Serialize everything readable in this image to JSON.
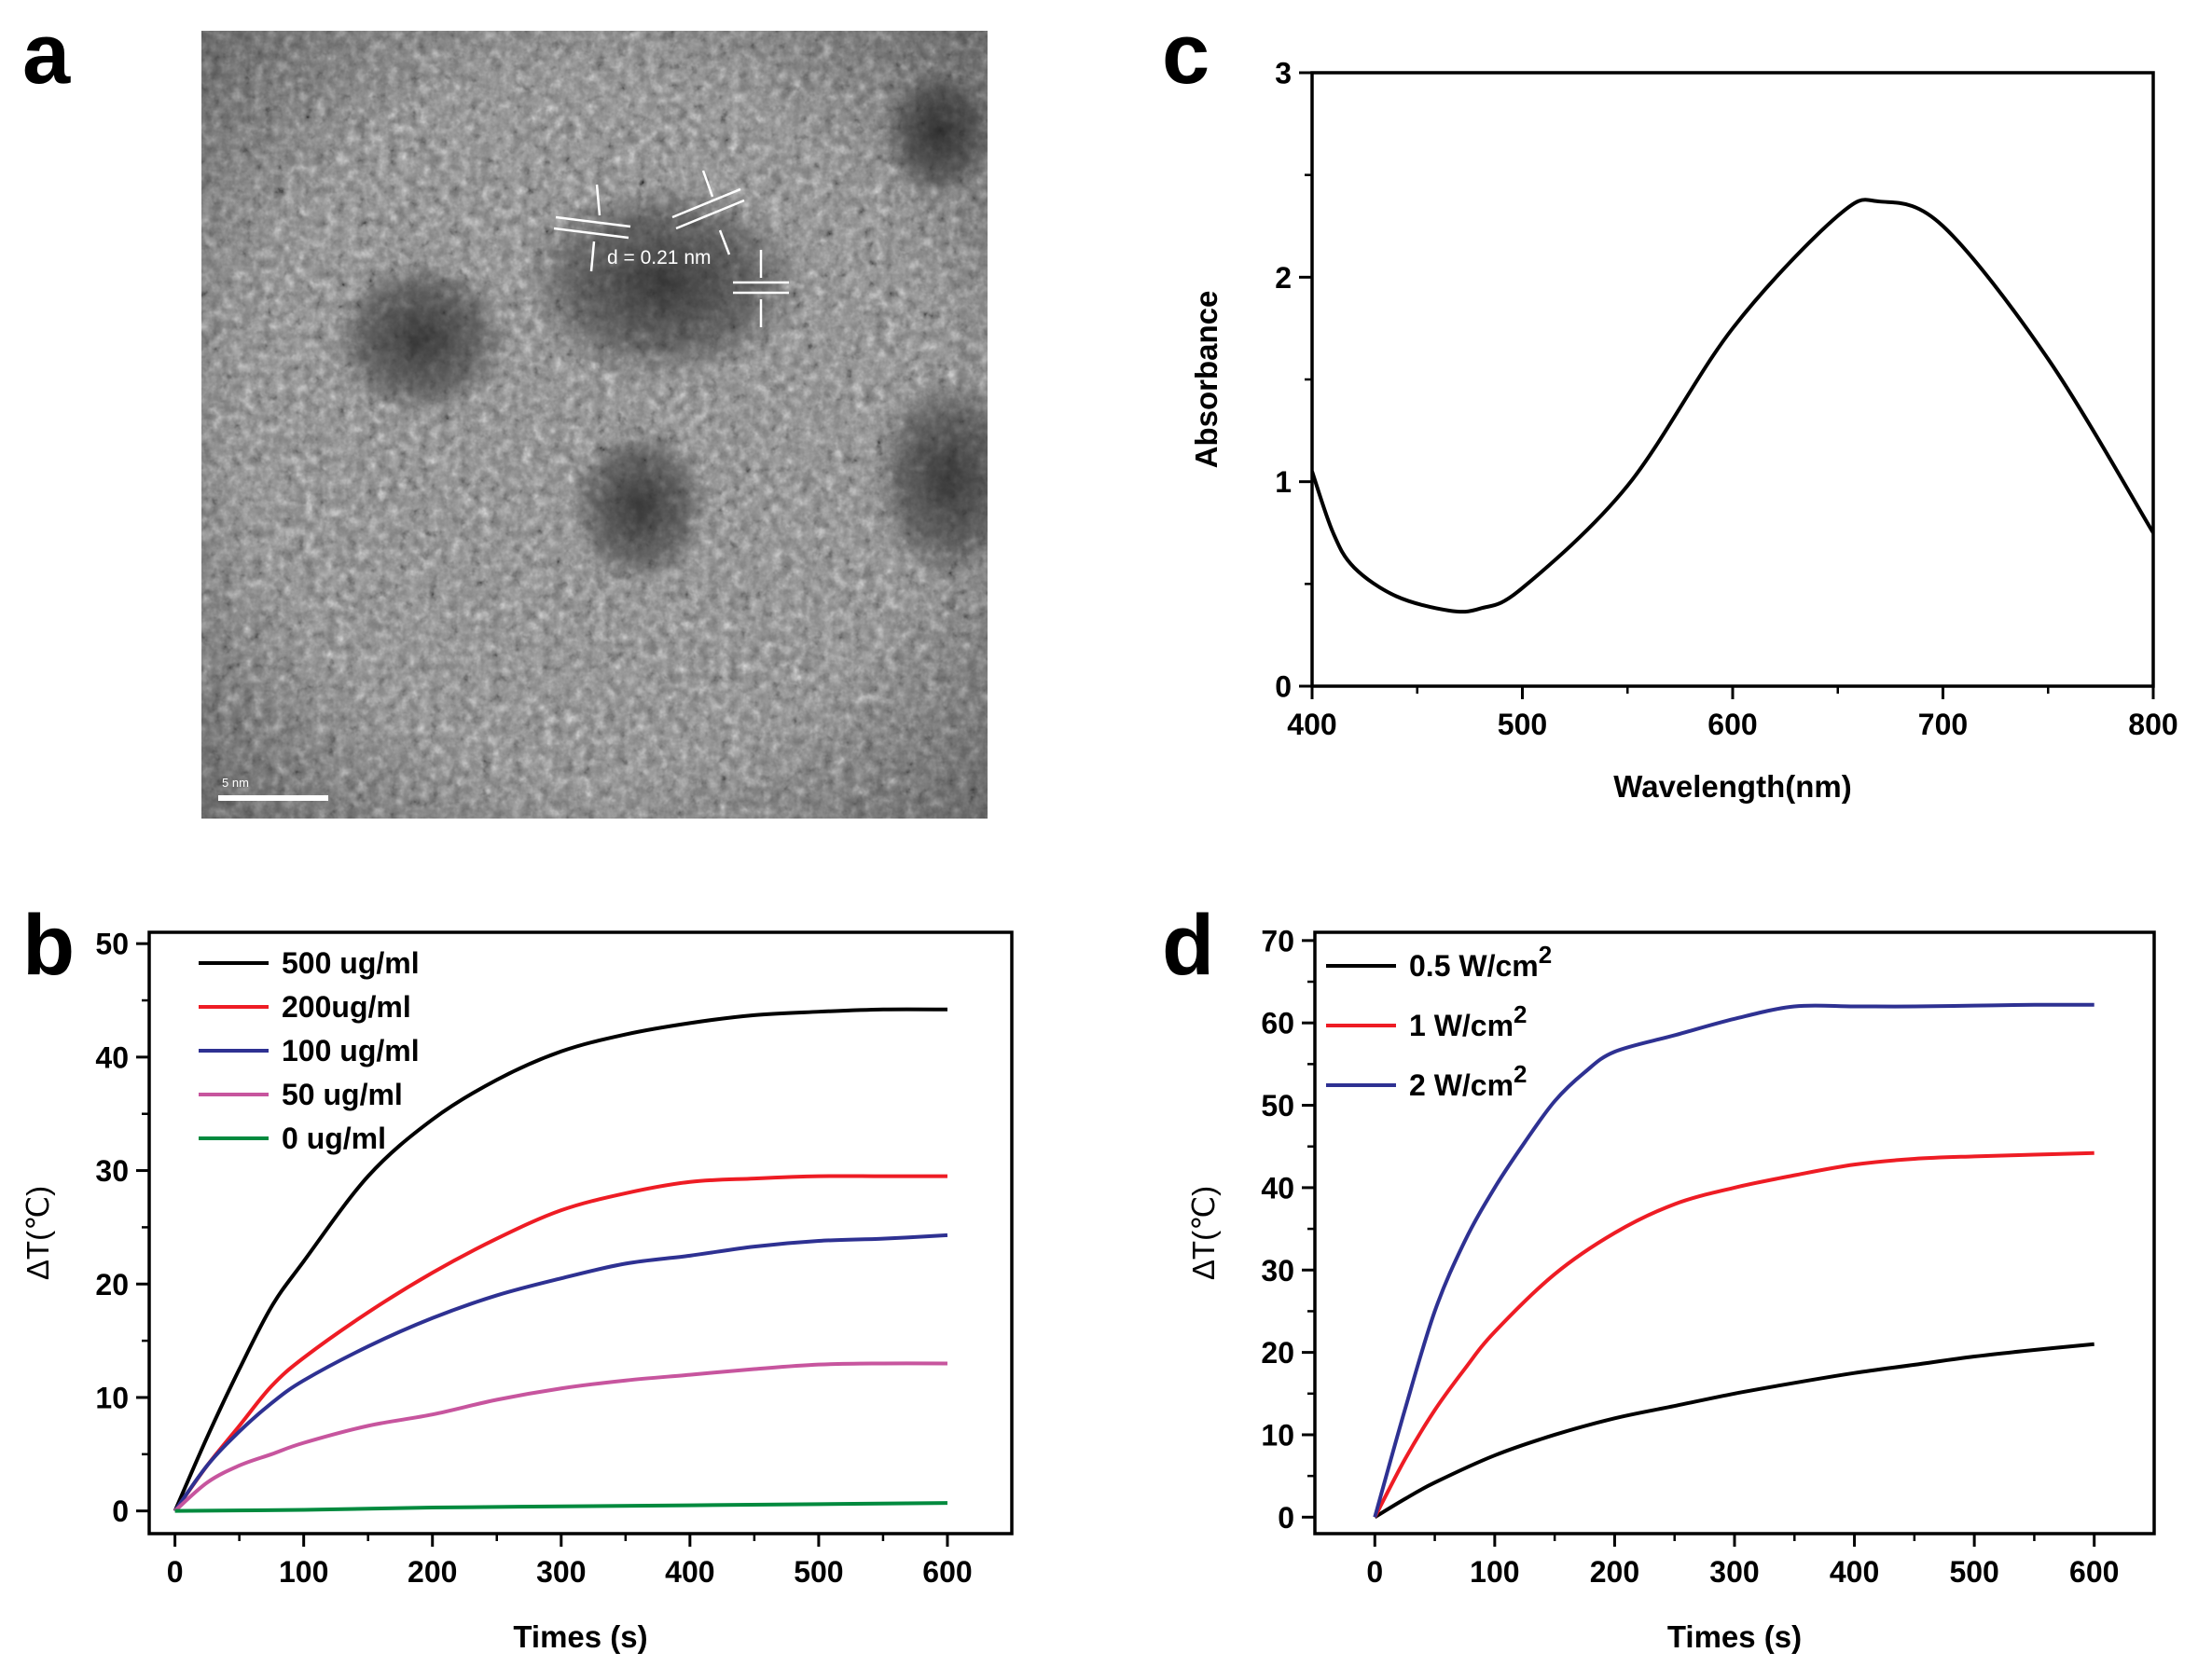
{
  "panels": {
    "a": {
      "letter": "a",
      "annotation": "d = 0.21 nm",
      "scale_bar_label": "5 nm"
    },
    "b": {
      "letter": "b"
    },
    "c": {
      "letter": "c"
    },
    "d": {
      "letter": "d"
    }
  },
  "chart_data": [
    {
      "id": "c",
      "type": "line",
      "title": "",
      "xlabel": "Wavelength(nm)",
      "ylabel": "Absorbance",
      "xlim": [
        400,
        800
      ],
      "ylim": [
        0,
        3
      ],
      "xticks": [
        "400",
        "500",
        "600",
        "700",
        "800"
      ],
      "yticks": [
        "0",
        "1",
        "2",
        "3"
      ],
      "grid": false,
      "series": [
        {
          "color": "#000000",
          "x": [
            400,
            410,
            420,
            440,
            465,
            480,
            500,
            550,
            600,
            650,
            670,
            700,
            750,
            800
          ],
          "y": [
            1.05,
            0.75,
            0.58,
            0.44,
            0.37,
            0.38,
            0.48,
            0.98,
            1.75,
            2.3,
            2.37,
            2.25,
            1.6,
            0.75
          ]
        }
      ]
    },
    {
      "id": "b",
      "type": "line",
      "title": "",
      "xlabel": "Times (s)",
      "ylabel": "ΔT(℃)",
      "xlim": [
        -20,
        650
      ],
      "ylim": [
        -2,
        51
      ],
      "xticks": [
        "0",
        "100",
        "200",
        "300",
        "400",
        "500",
        "600"
      ],
      "yticks": [
        "0",
        "10",
        "20",
        "30",
        "40",
        "50"
      ],
      "legend_position": "top-left",
      "grid": false,
      "series": [
        {
          "name": "500 ug/ml",
          "color": "#000000",
          "x": [
            0,
            25,
            50,
            75,
            100,
            150,
            200,
            250,
            300,
            350,
            400,
            450,
            500,
            550,
            600
          ],
          "y": [
            0,
            6.5,
            12.5,
            18,
            22,
            29.5,
            34.5,
            38,
            40.5,
            42,
            43,
            43.7,
            44,
            44.2,
            44.2
          ]
        },
        {
          "name": "200ug/ml",
          "color": "#ee1c24",
          "x": [
            0,
            25,
            50,
            75,
            100,
            150,
            200,
            250,
            300,
            350,
            400,
            450,
            500,
            550,
            600
          ],
          "y": [
            0,
            4,
            7.5,
            11,
            13.5,
            17.5,
            21,
            24,
            26.5,
            28,
            29,
            29.3,
            29.5,
            29.5,
            29.5
          ]
        },
        {
          "name": "100 ug/ml",
          "color": "#2e3192",
          "x": [
            0,
            25,
            50,
            75,
            100,
            150,
            200,
            250,
            300,
            350,
            400,
            450,
            500,
            550,
            600
          ],
          "y": [
            0,
            4,
            7,
            9.5,
            11.5,
            14.5,
            17,
            19,
            20.5,
            21.8,
            22.5,
            23.3,
            23.8,
            24,
            24.3
          ]
        },
        {
          "name": "50 ug/ml",
          "color": "#c7559e",
          "x": [
            0,
            25,
            50,
            75,
            100,
            150,
            200,
            250,
            300,
            350,
            400,
            450,
            500,
            550,
            600
          ],
          "y": [
            0,
            2.5,
            4,
            5,
            6,
            7.5,
            8.5,
            9.8,
            10.8,
            11.5,
            12,
            12.5,
            12.9,
            13,
            13
          ]
        },
        {
          "name": "0 ug/ml",
          "color": "#008a3e",
          "x": [
            0,
            100,
            200,
            300,
            400,
            500,
            600
          ],
          "y": [
            0,
            0.1,
            0.3,
            0.4,
            0.5,
            0.6,
            0.7
          ]
        }
      ]
    },
    {
      "id": "d",
      "type": "line",
      "title": "",
      "xlabel": "Times (s)",
      "ylabel": "ΔT(℃)",
      "xlim": [
        -50,
        650
      ],
      "ylim": [
        -2,
        71
      ],
      "xticks": [
        "0",
        "100",
        "200",
        "300",
        "400",
        "500",
        "600"
      ],
      "yticks": [
        "0",
        "10",
        "20",
        "30",
        "40",
        "50",
        "60",
        "70"
      ],
      "legend_position": "top-left",
      "grid": false,
      "series": [
        {
          "name": "0.5 W/cm",
          "name_superscript": "2",
          "color": "#000000",
          "x": [
            0,
            25,
            50,
            100,
            150,
            200,
            250,
            300,
            350,
            400,
            450,
            500,
            550,
            600
          ],
          "y": [
            0,
            2.2,
            4.2,
            7.5,
            10,
            12,
            13.5,
            15,
            16.3,
            17.5,
            18.5,
            19.5,
            20.3,
            21
          ]
        },
        {
          "name": "1 W/cm",
          "name_superscript": "2",
          "color": "#ee1c24",
          "x": [
            0,
            25,
            50,
            75,
            100,
            150,
            200,
            250,
            300,
            350,
            400,
            450,
            500,
            550,
            600
          ],
          "y": [
            0,
            7,
            13,
            18,
            22.5,
            29.5,
            34.5,
            38,
            40,
            41.5,
            42.8,
            43.5,
            43.8,
            44,
            44.2
          ]
        },
        {
          "name": "2 W/cm",
          "name_superscript": "2",
          "color": "#2e3192",
          "x": [
            0,
            25,
            50,
            75,
            100,
            125,
            150,
            175,
            200,
            250,
            300,
            350,
            400,
            450,
            500,
            550,
            600
          ],
          "y": [
            0,
            13,
            25,
            33.5,
            40,
            45.5,
            50.5,
            54,
            56.5,
            58.5,
            60.5,
            62,
            62,
            62,
            62.1,
            62.2,
            62.2
          ]
        }
      ]
    }
  ]
}
